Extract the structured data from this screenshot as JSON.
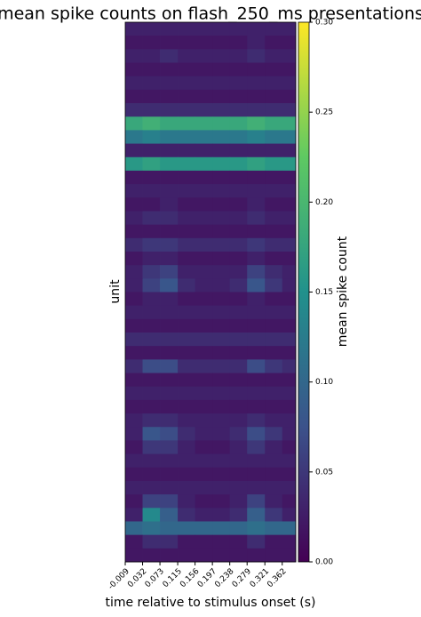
{
  "chart_data": {
    "type": "heatmap",
    "title": "mean spike counts on flash_250_ms presentations",
    "xlabel": "time relative to stimulus onset (s)",
    "ylabel": "unit",
    "colorbar_label": "mean spike count",
    "colormap": "viridis",
    "xbins": [
      -0.009,
      0.032,
      0.073,
      0.115,
      0.156,
      0.197,
      0.238,
      0.279,
      0.321,
      0.362,
      0.394
    ],
    "xlim": [
      -0.009,
      0.394
    ],
    "xticks": [
      -0.009,
      0.032,
      0.073,
      0.115,
      0.156,
      0.197,
      0.238,
      0.279,
      0.321,
      0.362
    ],
    "clim": [
      0,
      0.3
    ],
    "cticks": [
      {
        "value": 0,
        "label": "0.00"
      },
      {
        "value": 0.05,
        "label": "0.05"
      },
      {
        "value": 0.1,
        "label": "0.10"
      },
      {
        "value": 0.15,
        "label": "0.15"
      },
      {
        "value": 0.2,
        "label": "0.20"
      },
      {
        "value": 0.25,
        "label": "0.25"
      },
      {
        "value": 0.3,
        "label": "0.30"
      }
    ],
    "values": [
      [
        0.03,
        0.03,
        0.03,
        0.03,
        0.03,
        0.03,
        0.03,
        0.03,
        0.03,
        0.03
      ],
      [
        0.02,
        0.02,
        0.02,
        0.02,
        0.02,
        0.02,
        0.02,
        0.03,
        0.02,
        0.02
      ],
      [
        0.03,
        0.03,
        0.04,
        0.03,
        0.03,
        0.03,
        0.03,
        0.04,
        0.03,
        0.03
      ],
      [
        0.02,
        0.02,
        0.02,
        0.02,
        0.02,
        0.02,
        0.02,
        0.02,
        0.02,
        0.02
      ],
      [
        0.03,
        0.03,
        0.03,
        0.03,
        0.03,
        0.03,
        0.03,
        0.03,
        0.03,
        0.03
      ],
      [
        0.02,
        0.02,
        0.02,
        0.02,
        0.02,
        0.02,
        0.02,
        0.02,
        0.02,
        0.02
      ],
      [
        0.04,
        0.04,
        0.04,
        0.04,
        0.04,
        0.04,
        0.04,
        0.04,
        0.04,
        0.04
      ],
      [
        0.18,
        0.19,
        0.18,
        0.18,
        0.18,
        0.18,
        0.18,
        0.19,
        0.18,
        0.18
      ],
      [
        0.12,
        0.13,
        0.12,
        0.12,
        0.12,
        0.12,
        0.12,
        0.13,
        0.12,
        0.12
      ],
      [
        0.03,
        0.03,
        0.03,
        0.03,
        0.03,
        0.03,
        0.03,
        0.03,
        0.03,
        0.03
      ],
      [
        0.16,
        0.17,
        0.16,
        0.16,
        0.16,
        0.16,
        0.16,
        0.17,
        0.16,
        0.16
      ],
      [
        0.02,
        0.02,
        0.02,
        0.02,
        0.02,
        0.02,
        0.02,
        0.02,
        0.02,
        0.02
      ],
      [
        0.03,
        0.03,
        0.03,
        0.03,
        0.03,
        0.03,
        0.03,
        0.03,
        0.03,
        0.03
      ],
      [
        0.02,
        0.02,
        0.03,
        0.02,
        0.02,
        0.02,
        0.02,
        0.03,
        0.02,
        0.02
      ],
      [
        0.03,
        0.04,
        0.04,
        0.03,
        0.03,
        0.03,
        0.03,
        0.04,
        0.03,
        0.03
      ],
      [
        0.02,
        0.02,
        0.02,
        0.02,
        0.02,
        0.02,
        0.02,
        0.02,
        0.02,
        0.02
      ],
      [
        0.04,
        0.05,
        0.05,
        0.04,
        0.04,
        0.04,
        0.04,
        0.05,
        0.04,
        0.04
      ],
      [
        0.02,
        0.03,
        0.03,
        0.02,
        0.02,
        0.02,
        0.02,
        0.03,
        0.02,
        0.02
      ],
      [
        0.03,
        0.05,
        0.06,
        0.03,
        0.03,
        0.03,
        0.03,
        0.06,
        0.04,
        0.03
      ],
      [
        0.03,
        0.06,
        0.08,
        0.04,
        0.03,
        0.03,
        0.04,
        0.08,
        0.05,
        0.03
      ],
      [
        0.02,
        0.03,
        0.03,
        0.02,
        0.02,
        0.02,
        0.02,
        0.03,
        0.02,
        0.02
      ],
      [
        0.03,
        0.03,
        0.03,
        0.03,
        0.03,
        0.03,
        0.03,
        0.03,
        0.03,
        0.03
      ],
      [
        0.02,
        0.02,
        0.02,
        0.02,
        0.02,
        0.02,
        0.02,
        0.02,
        0.02,
        0.02
      ],
      [
        0.04,
        0.04,
        0.04,
        0.04,
        0.04,
        0.04,
        0.04,
        0.04,
        0.04,
        0.04
      ],
      [
        0.02,
        0.02,
        0.02,
        0.02,
        0.02,
        0.02,
        0.02,
        0.02,
        0.02,
        0.02
      ],
      [
        0.04,
        0.07,
        0.07,
        0.04,
        0.04,
        0.04,
        0.04,
        0.07,
        0.05,
        0.04
      ],
      [
        0.02,
        0.02,
        0.02,
        0.02,
        0.02,
        0.02,
        0.02,
        0.02,
        0.02,
        0.02
      ],
      [
        0.03,
        0.03,
        0.03,
        0.03,
        0.03,
        0.03,
        0.03,
        0.03,
        0.03,
        0.03
      ],
      [
        0.02,
        0.02,
        0.02,
        0.02,
        0.02,
        0.02,
        0.02,
        0.02,
        0.02,
        0.02
      ],
      [
        0.03,
        0.04,
        0.04,
        0.03,
        0.03,
        0.03,
        0.03,
        0.04,
        0.03,
        0.03
      ],
      [
        0.03,
        0.08,
        0.07,
        0.04,
        0.03,
        0.03,
        0.04,
        0.07,
        0.05,
        0.03
      ],
      [
        0.02,
        0.05,
        0.05,
        0.03,
        0.02,
        0.02,
        0.03,
        0.05,
        0.03,
        0.02
      ],
      [
        0.03,
        0.03,
        0.03,
        0.03,
        0.03,
        0.03,
        0.03,
        0.03,
        0.03,
        0.03
      ],
      [
        0.02,
        0.02,
        0.02,
        0.02,
        0.02,
        0.02,
        0.02,
        0.02,
        0.02,
        0.02
      ],
      [
        0.03,
        0.03,
        0.03,
        0.03,
        0.03,
        0.03,
        0.03,
        0.03,
        0.03,
        0.03
      ],
      [
        0.02,
        0.06,
        0.06,
        0.03,
        0.02,
        0.02,
        0.03,
        0.06,
        0.03,
        0.02
      ],
      [
        0.03,
        0.14,
        0.09,
        0.04,
        0.03,
        0.03,
        0.04,
        0.09,
        0.05,
        0.03
      ],
      [
        0.1,
        0.11,
        0.1,
        0.1,
        0.1,
        0.1,
        0.1,
        0.11,
        0.1,
        0.1
      ],
      [
        0.02,
        0.04,
        0.04,
        0.02,
        0.02,
        0.02,
        0.02,
        0.04,
        0.02,
        0.02
      ],
      [
        0.02,
        0.02,
        0.02,
        0.02,
        0.02,
        0.02,
        0.02,
        0.02,
        0.02,
        0.02
      ]
    ]
  }
}
